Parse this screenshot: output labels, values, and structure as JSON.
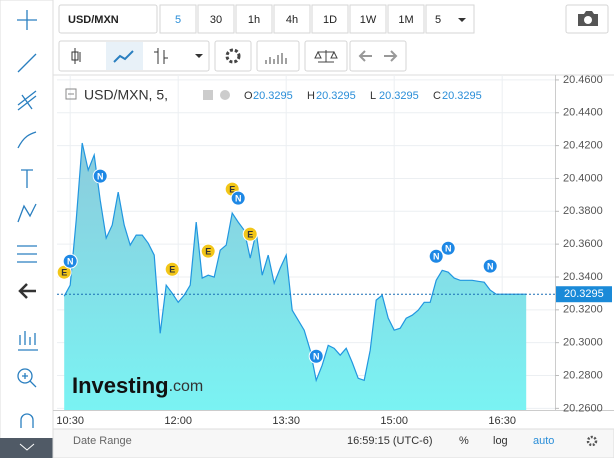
{
  "toolbar": {
    "symbol": "USD/MXN",
    "intervals": [
      "5",
      "30",
      "1h",
      "4h",
      "1D",
      "1W",
      "1M",
      "5"
    ]
  },
  "legend": {
    "title": "USD/MXN, 5,",
    "ohlc": [
      {
        "label": "O",
        "value": 20.3295
      },
      {
        "label": "H",
        "value": 20.3295
      },
      {
        "label": "L",
        "value": 20.3295
      },
      {
        "label": "C",
        "value": 20.3295
      }
    ]
  },
  "chart_data": {
    "type": "area",
    "color": "#2196e0",
    "x": [
      "10:25",
      "10:30",
      "10:35",
      "10:40",
      "10:45",
      "10:50",
      "10:55",
      "11:00",
      "11:05",
      "11:10",
      "11:15",
      "11:20",
      "11:25",
      "11:30",
      "11:35",
      "11:40",
      "11:45",
      "11:50",
      "11:55",
      "12:00",
      "12:05",
      "12:10",
      "12:15",
      "12:20",
      "12:25",
      "12:30",
      "12:35",
      "12:40",
      "12:45",
      "12:50",
      "12:55",
      "13:00",
      "13:05",
      "13:10",
      "13:15",
      "13:20",
      "13:25",
      "13:30",
      "13:35",
      "13:40",
      "13:45",
      "13:50",
      "13:55",
      "14:00",
      "14:05",
      "14:10",
      "14:15",
      "14:20",
      "14:25",
      "14:30",
      "14:35",
      "14:40",
      "14:45",
      "14:50",
      "14:55",
      "15:00",
      "15:05",
      "15:10",
      "15:15",
      "15:20",
      "15:25",
      "15:30",
      "15:35",
      "15:40",
      "15:45",
      "15:50",
      "15:55",
      "16:00",
      "16:05",
      "16:10",
      "16:15",
      "16:20",
      "16:25",
      "16:30",
      "16:35",
      "16:40",
      "16:45",
      "16:50"
    ],
    "series": [
      {
        "name": "USD/MXN",
        "values": [
          20.3283,
          20.335,
          20.3746,
          20.4216,
          20.4051,
          20.4143,
          20.3868,
          20.3637,
          20.3716,
          20.3917,
          20.3716,
          20.3594,
          20.3655,
          20.3655,
          20.3606,
          20.3533,
          20.3057,
          20.335,
          20.3301,
          20.3246,
          20.3289,
          20.335,
          20.3734,
          20.3393,
          20.3411,
          20.3399,
          20.3563,
          20.3594,
          20.3789,
          20.3734,
          20.3685,
          20.3515,
          20.3673,
          20.3411,
          20.3533,
          20.3362,
          20.3454,
          20.3533,
          20.3198,
          20.3137,
          20.3076,
          20.2954,
          20.2771,
          20.2863,
          20.2984,
          20.2966,
          20.2924,
          20.2966,
          20.288,
          20.2783,
          20.2771,
          20.2954,
          20.3259,
          20.3289,
          20.3149,
          20.3076,
          20.3088,
          20.3149,
          20.3167,
          20.3198,
          20.3246,
          20.3246,
          20.338,
          20.3441,
          20.3429,
          20.3393,
          20.338,
          20.338,
          20.338,
          20.3374,
          20.3368,
          20.332,
          20.3295,
          20.3295,
          20.3295,
          20.3295,
          20.3295,
          20.3295
        ]
      }
    ],
    "last_price": 20.3295,
    "xlim": [
      "10:19",
      "17:14"
    ],
    "xticks": [
      "10:30",
      "12:00",
      "13:30",
      "15:00",
      "16:30"
    ],
    "ylim": [
      20.259,
      20.463
    ],
    "yticks": [
      {
        "value": 20.26,
        "label": "20.2600"
      },
      {
        "value": 20.28,
        "label": "20.2800"
      },
      {
        "value": 20.3,
        "label": "20.3000"
      },
      {
        "value": 20.32,
        "label": "20.3200"
      },
      {
        "value": 20.34,
        "label": "20.3400"
      },
      {
        "value": 20.36,
        "label": "20.3600"
      },
      {
        "value": 20.38,
        "label": "20.3800"
      },
      {
        "value": 20.4,
        "label": "20.4000"
      },
      {
        "value": 20.42,
        "label": "20.4200"
      },
      {
        "value": 20.44,
        "label": "20.4400"
      },
      {
        "value": 20.46,
        "label": "20.4600"
      }
    ],
    "grid": true,
    "events": [
      {
        "label": "E",
        "x": "10:25"
      },
      {
        "label": "N",
        "x": "10:30"
      },
      {
        "label": "N",
        "x": "10:55"
      },
      {
        "label": "E",
        "x": "11:55"
      },
      {
        "label": "E",
        "x": "12:25"
      },
      {
        "label": "E",
        "x": "12:45"
      },
      {
        "label": "N",
        "x": "12:50"
      },
      {
        "label": "E",
        "x": "13:00"
      },
      {
        "label": "N",
        "x": "13:55"
      },
      {
        "label": "N",
        "x": "15:35"
      },
      {
        "label": "N",
        "x": "15:45"
      },
      {
        "label": "N",
        "x": "16:20"
      }
    ]
  },
  "watermark": {
    "brand": "Investing",
    "suffix": ".com"
  },
  "footer": {
    "date_range": "Date Range",
    "clock": "16:59:15 (UTC-6)",
    "percent": "%",
    "log": "log",
    "auto": "auto"
  }
}
